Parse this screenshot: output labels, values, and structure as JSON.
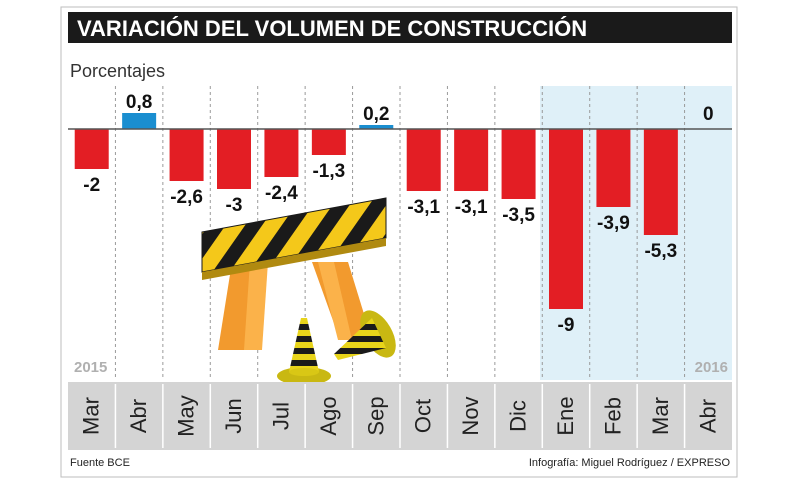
{
  "chart_data": {
    "type": "bar",
    "title": "VARIACIÓN DEL VOLUMEN DE CONSTRUCCIÓN",
    "ylabel": "Porcentajes",
    "categories": [
      "Mar",
      "Abr",
      "May",
      "Jun",
      "Jul",
      "Ago",
      "Sep",
      "Oct",
      "Nov",
      "Dic",
      "Ene",
      "Feb",
      "Mar",
      "Abr"
    ],
    "values": [
      -2,
      0.8,
      -2.6,
      -3,
      -2.4,
      -1.3,
      0.2,
      -3.1,
      -3.1,
      -3.5,
      -9,
      -3.9,
      -5.3,
      0
    ],
    "value_labels": [
      "-2",
      "0,8",
      "-2,6",
      "-3",
      "-2,4",
      "-1,3",
      "0,2",
      "-3,1",
      "-3,1",
      "-3,5",
      "-9",
      "-3,9",
      "-5,3",
      "0"
    ],
    "year_labels": {
      "start": "2015",
      "end": "2016"
    },
    "highlighted_categories": [
      10,
      11,
      12,
      13
    ],
    "ylim": [
      -10,
      1
    ],
    "grid": true,
    "colors": {
      "negative": "#e31e24",
      "positive": "#1a8ed0",
      "header_bg": "#1a1a1a",
      "highlight_bg": "#dff0f8",
      "axis_strip": "#d4d4d4",
      "year_text": "#b0b0b0"
    }
  },
  "footer": {
    "source": "Fuente BCE",
    "credit": "Infografía: Miguel Rodríguez / EXPRESO"
  }
}
